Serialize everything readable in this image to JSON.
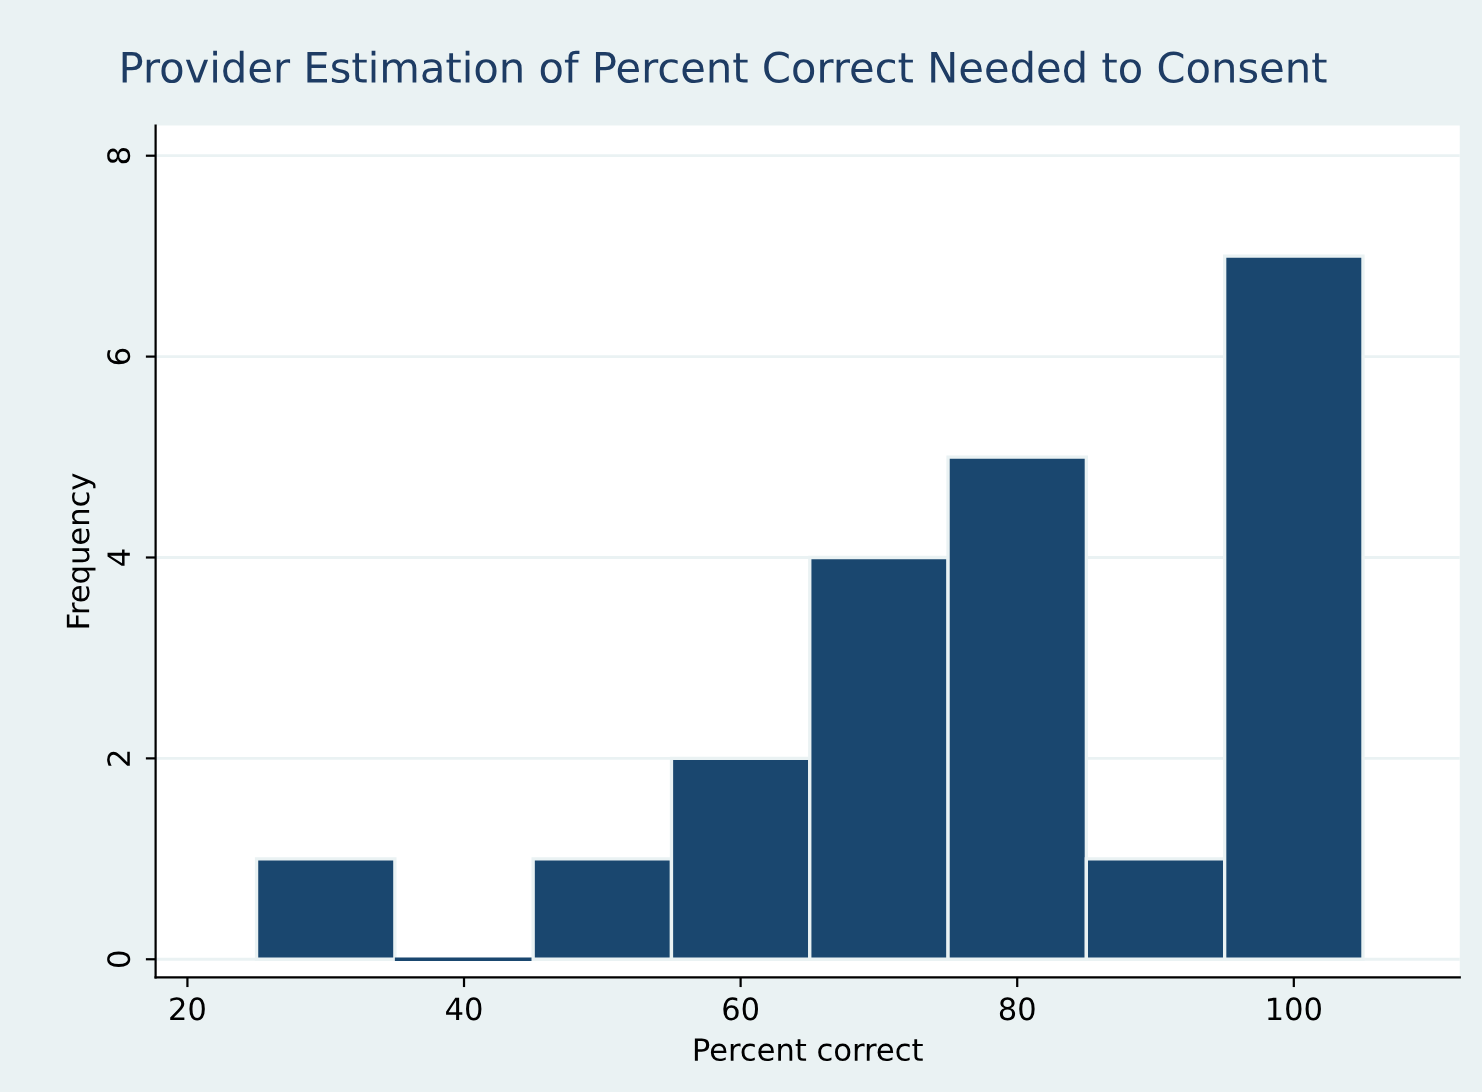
{
  "chart_data": {
    "type": "histogram",
    "title": "Provider Estimation of Percent Correct Needed to Consent",
    "xlabel": "Percent correct",
    "ylabel": "Frequency",
    "bins": [
      25,
      35,
      45,
      55,
      65,
      75,
      85,
      95,
      105
    ],
    "values": [
      1,
      0,
      1,
      2,
      4,
      5,
      1,
      7
    ],
    "color": "#1a476f",
    "xlim": [
      17.7,
      112
    ],
    "xticks": [
      20,
      40,
      60,
      80,
      100
    ],
    "ylim": [
      -0.18,
      8.3
    ],
    "yticks": [
      0,
      2,
      4,
      6,
      8
    ],
    "grid": "y",
    "legend": false
  }
}
